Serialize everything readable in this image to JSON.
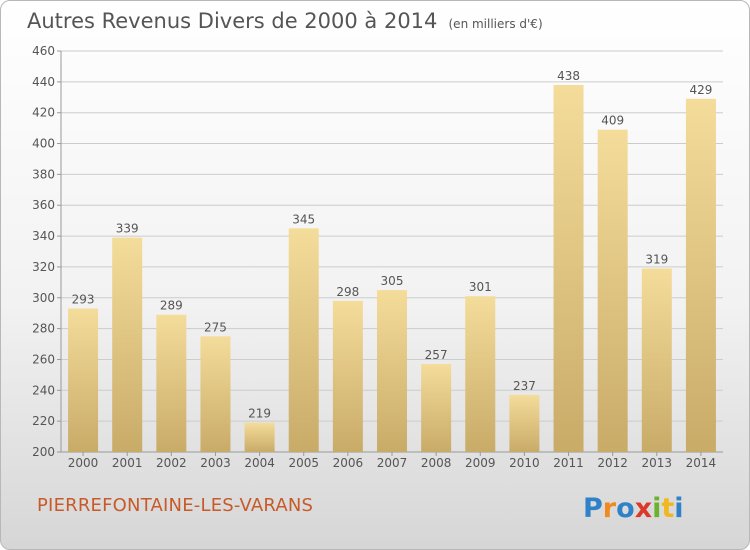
{
  "header": {
    "title": "Autres Revenus Divers de 2000 à 2014",
    "unit": "(en milliers d'€)"
  },
  "footer": {
    "commune": "PIERREFONTAINE-LES-VARANS",
    "logo_text": "Proxiti"
  },
  "colors": {
    "bar_light": "#f4dc9a",
    "bar_dark": "#c9ab68",
    "grid": "#cccccc",
    "text": "#555555",
    "commune": "#c85a2a"
  },
  "chart_data": {
    "type": "bar",
    "categories": [
      "2000",
      "2001",
      "2002",
      "2003",
      "2004",
      "2005",
      "2006",
      "2007",
      "2008",
      "2009",
      "2010",
      "2011",
      "2012",
      "2013",
      "2014"
    ],
    "values": [
      293,
      339,
      289,
      275,
      219,
      345,
      298,
      305,
      257,
      301,
      237,
      438,
      409,
      319,
      429
    ],
    "ylim": [
      200,
      460
    ],
    "yticks": [
      200,
      220,
      240,
      260,
      280,
      300,
      320,
      340,
      360,
      380,
      400,
      420,
      440,
      460
    ],
    "grid": true,
    "data_labels": true
  }
}
